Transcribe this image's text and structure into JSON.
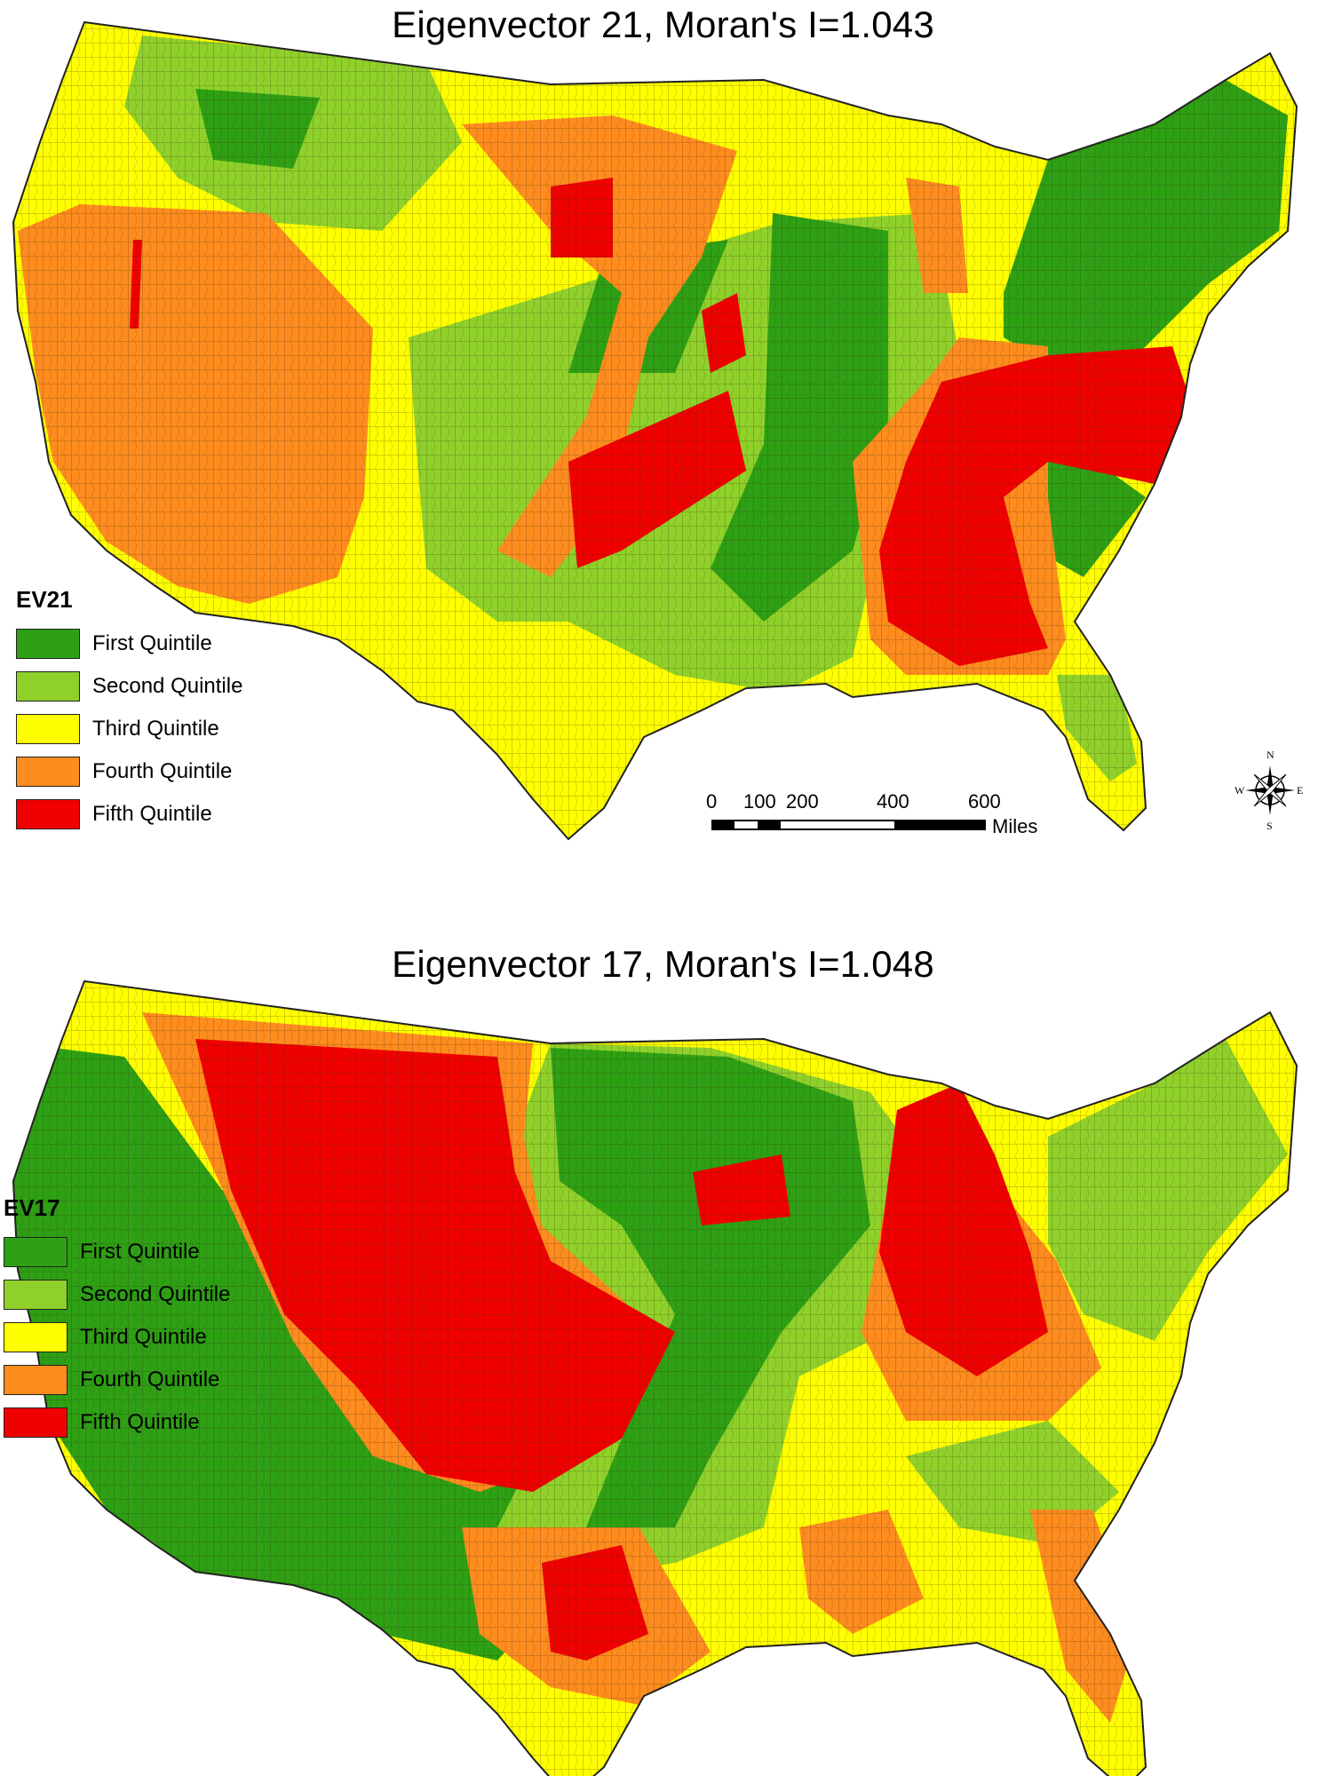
{
  "maps": [
    {
      "title": "Eigenvector 21, Moran's I=1.043",
      "legend_title": "EV21",
      "legend": [
        {
          "label": "First Quintile",
          "color": "#2ea014"
        },
        {
          "label": "Second Quintile",
          "color": "#8fd12a"
        },
        {
          "label": "Third Quintile",
          "color": "#ffff00"
        },
        {
          "label": "Fourth Quintile",
          "color": "#ff8c1e"
        },
        {
          "label": "Fifth Quintile",
          "color": "#f00000"
        }
      ],
      "scale_ticks": [
        "0",
        "100",
        "200",
        "400",
        "600"
      ],
      "scale_unit": "Miles",
      "compass": {
        "n": "N",
        "e": "E",
        "s": "S",
        "w": "W"
      }
    },
    {
      "title": "Eigenvector 17, Moran's I=1.048",
      "legend_title": "EV17",
      "legend": [
        {
          "label": "First Quintile",
          "color": "#2ea014"
        },
        {
          "label": "Second Quintile",
          "color": "#8fd12a"
        },
        {
          "label": "Third Quintile",
          "color": "#ffff00"
        },
        {
          "label": "Fourth Quintile",
          "color": "#ff8c1e"
        },
        {
          "label": "Fifth Quintile",
          "color": "#f00000"
        }
      ]
    }
  ]
}
